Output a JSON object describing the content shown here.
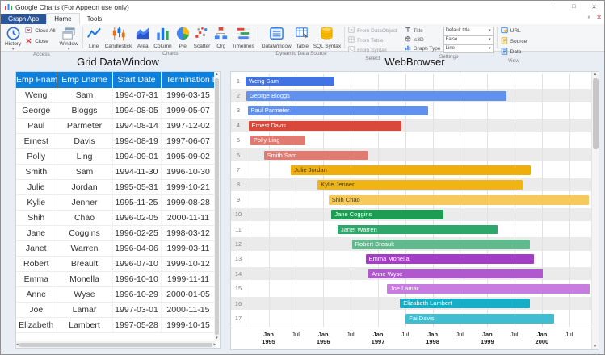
{
  "window": {
    "title": "Google Charts (For Appeon use only)",
    "minimize": "─",
    "maximize": "□",
    "close": "✕"
  },
  "tabs": {
    "graph_app": "Graph App",
    "home": "Home",
    "tools": "Tools"
  },
  "ribbon": {
    "access": {
      "label": "Access",
      "history": "History",
      "close_all": "Close All",
      "close": "Close",
      "window": "Window"
    },
    "charts": {
      "label": "Charts",
      "items": [
        {
          "label": "Line"
        },
        {
          "label": "Candlestick"
        },
        {
          "label": "Area"
        },
        {
          "label": "Column"
        },
        {
          "label": "Pie"
        },
        {
          "label": "Scatter"
        },
        {
          "label": "Org"
        },
        {
          "label": "Timelines"
        }
      ]
    },
    "dds": {
      "label": "Dynamic Data Source",
      "items": [
        "DataWindow",
        "Table",
        "SQL Syntax"
      ]
    },
    "select": {
      "label": "Select",
      "items": [
        "From DataObject",
        "From Table",
        "From Syntax"
      ]
    },
    "settings": {
      "label": "Settings",
      "rows": [
        {
          "label": "Title",
          "value": "Default title"
        },
        {
          "label": "is3D",
          "value": "False"
        },
        {
          "label": "Graph Type",
          "value": "Line"
        }
      ]
    },
    "view": {
      "label": "View",
      "items": [
        "URL",
        "Source",
        "Data"
      ]
    }
  },
  "grid": {
    "title": "Grid DataWindow",
    "columns": [
      "Emp Fname",
      "Emp Lname",
      "Start Date",
      "Termination Date"
    ],
    "rows": [
      [
        "Weng",
        "Sam",
        "1994-07-31",
        "1996-03-15"
      ],
      [
        "George",
        "Bloggs",
        "1994-08-05",
        "1999-05-07"
      ],
      [
        "Paul",
        "Parmeter",
        "1994-08-14",
        "1997-12-02"
      ],
      [
        "Ernest",
        "Davis",
        "1994-08-19",
        "1997-06-07"
      ],
      [
        "Polly",
        "Ling",
        "1994-09-01",
        "1995-09-02"
      ],
      [
        "Smith",
        "Sam",
        "1994-11-30",
        "1996-10-30"
      ],
      [
        "Julie",
        "Jordan",
        "1995-05-31",
        "1999-10-21"
      ],
      [
        "Kylie",
        "Jenner",
        "1995-11-25",
        "1999-08-28"
      ],
      [
        "Shih",
        "Chao",
        "1996-02-05",
        "2000-11-11"
      ],
      [
        "Jane",
        "Coggins",
        "1996-02-25",
        "1998-03-12"
      ],
      [
        "Janet",
        "Warren",
        "1996-04-06",
        "1999-03-11"
      ],
      [
        "Robert",
        "Breault",
        "1996-07-10",
        "1999-10-12"
      ],
      [
        "Emma",
        "Monella",
        "1996-10-10",
        "1999-11-11"
      ],
      [
        "Anne",
        "Wyse",
        "1996-10-29",
        "2000-01-05"
      ],
      [
        "Joe",
        "Lamar",
        "1997-03-01",
        "2000-11-15"
      ],
      [
        "Elizabeth",
        "Lambert",
        "1997-05-28",
        "1999-10-15"
      ]
    ]
  },
  "browser": {
    "title": "WebBrowser"
  },
  "chart_data": {
    "type": "timeline",
    "range": {
      "min": "1994-07-31",
      "max": "2000-11-15"
    },
    "rows": [
      {
        "index": "1",
        "label": "Weng Sam",
        "start": "1994-07-31",
        "end": "1996-03-15",
        "color": "#4173E2",
        "text_color": "#ffffff"
      },
      {
        "index": "2",
        "label": "George Bloggs",
        "start": "1994-08-05",
        "end": "1999-05-07",
        "color": "#6191EF",
        "text_color": "#ffffff"
      },
      {
        "index": "3",
        "label": "Paul Parmeter",
        "start": "1994-08-14",
        "end": "1997-12-02",
        "color": "#6191EF",
        "text_color": "#ffffff"
      },
      {
        "index": "4",
        "label": "Ernest Davis",
        "start": "1994-08-19",
        "end": "1997-06-07",
        "color": "#D9483B",
        "text_color": "#ffffff"
      },
      {
        "index": "5",
        "label": "Polly Ling",
        "start": "1994-09-01",
        "end": "1995-09-02",
        "color": "#E07B71",
        "text_color": "#ffffff"
      },
      {
        "index": "6",
        "label": "Smith Sam",
        "start": "1994-11-30",
        "end": "1996-10-30",
        "color": "#E07B71",
        "text_color": "#ffffff"
      },
      {
        "index": "7",
        "label": "Julie Jordan",
        "start": "1995-05-31",
        "end": "1999-10-21",
        "color": "#F0AE0C",
        "text_color": "#4d3f00"
      },
      {
        "index": "8",
        "label": "Kylie Jenner",
        "start": "1995-11-25",
        "end": "1999-08-28",
        "color": "#F1B513",
        "text_color": "#4d3f00"
      },
      {
        "index": "9",
        "label": "Shih Chao",
        "start": "1996-02-05",
        "end": "2000-11-11",
        "color": "#F5C95B",
        "text_color": "#4d3f00"
      },
      {
        "index": "10",
        "label": "Jane Coggins",
        "start": "1996-02-25",
        "end": "1998-03-12",
        "color": "#1F9C54",
        "text_color": "#ffffff"
      },
      {
        "index": "11",
        "label": "Janet Warren",
        "start": "1996-04-06",
        "end": "1999-03-11",
        "color": "#2EA76A",
        "text_color": "#ffffff"
      },
      {
        "index": "12",
        "label": "Robert Breault",
        "start": "1996-07-10",
        "end": "1999-10-12",
        "color": "#60BA8D",
        "text_color": "#ffffff"
      },
      {
        "index": "13",
        "label": "Emma Monella",
        "start": "1996-10-10",
        "end": "1999-11-11",
        "color": "#A43DC6",
        "text_color": "#ffffff"
      },
      {
        "index": "14",
        "label": "Anne Wyse",
        "start": "1996-10-29",
        "end": "2000-01-05",
        "color": "#B058CE",
        "text_color": "#ffffff"
      },
      {
        "index": "15",
        "label": "Joe Lamar",
        "start": "1997-03-01",
        "end": "2000-11-15",
        "color": "#C77CDF",
        "text_color": "#ffffff"
      },
      {
        "index": "16",
        "label": "Elizabeth Lambert",
        "start": "1997-05-28",
        "end": "1999-10-15",
        "color": "#16AEC6",
        "text_color": "#ffffff"
      },
      {
        "index": "17",
        "label": "Fai Davis",
        "start": "1997-07-05",
        "end": "2000-03-25",
        "color": "#40BDCF",
        "text_color": "#ffffff"
      }
    ],
    "axis_ticks": [
      {
        "month": "Jan",
        "year": "1995",
        "date": "1995-01-01"
      },
      {
        "month": "Jul",
        "date": "1995-07-01"
      },
      {
        "month": "Jan",
        "year": "1996",
        "date": "1996-01-01"
      },
      {
        "month": "Jul",
        "date": "1996-07-01"
      },
      {
        "month": "Jan",
        "year": "1997",
        "date": "1997-01-01"
      },
      {
        "month": "Jul",
        "date": "1997-07-01"
      },
      {
        "month": "Jan",
        "year": "1998",
        "date": "1998-01-01"
      },
      {
        "month": "Jul",
        "date": "1998-07-01"
      },
      {
        "month": "Jan",
        "year": "1999",
        "date": "1999-01-01"
      },
      {
        "month": "Jul",
        "date": "1999-07-01"
      },
      {
        "month": "Jan",
        "year": "2000",
        "date": "2000-01-01"
      },
      {
        "month": "Jul",
        "date": "2000-07-01"
      }
    ]
  }
}
